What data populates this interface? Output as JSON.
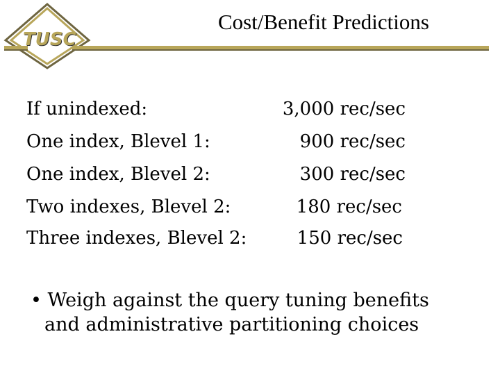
{
  "logo": {
    "text": "TUSC"
  },
  "slide": {
    "title": "Cost/Benefit Predictions"
  },
  "rows": [
    {
      "label": "If unindexed:",
      "value": "3,000 rec/sec"
    },
    {
      "label": "One index, Blevel 1:",
      "value": "900 rec/sec"
    },
    {
      "label": "One index, Blevel 2:",
      "value": "300 rec/sec"
    },
    {
      "label": "Two indexes, Blevel 2:",
      "value": "180 rec/sec"
    },
    {
      "label": "Three indexes, Blevel 2:",
      "value": "150 rec/sec"
    }
  ],
  "bullet": {
    "marker": "•",
    "line1": "Weigh against the query tuning benefits",
    "line2": "and administrative partitioning choices"
  }
}
